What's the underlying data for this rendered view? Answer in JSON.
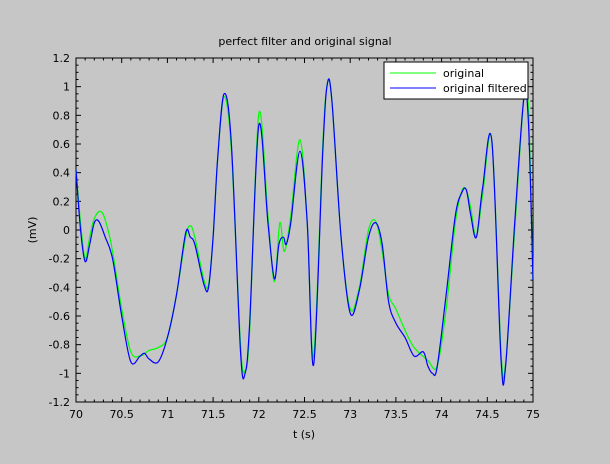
{
  "chart_data": {
    "type": "line",
    "title": "perfect filter and original signal",
    "xlabel": "t (s)",
    "ylabel": "(mV)",
    "xlim": [
      70,
      75
    ],
    "ylim": [
      -1.2,
      1.2
    ],
    "x_ticks": [
      70,
      70.5,
      71,
      71.5,
      72,
      72.5,
      73,
      73.5,
      74,
      74.5,
      75
    ],
    "x_tick_labels": [
      "70",
      "70.5",
      "71",
      "71.5",
      "72",
      "72.5",
      "73",
      "73.5",
      "74",
      "74.5",
      "75"
    ],
    "y_ticks": [
      -1.2,
      -1,
      -0.8,
      -0.6,
      -0.4,
      -0.2,
      0,
      0.2,
      0.4,
      0.6,
      0.8,
      1,
      1.2
    ],
    "y_tick_labels": [
      "-1.2",
      "-1",
      "-0.8",
      "-0.6",
      "-0.4",
      "-0.2",
      "0",
      "0.2",
      "0.4",
      "0.6",
      "0.8",
      "1",
      "1.2"
    ],
    "grid": false,
    "legend_position": "top-right",
    "series": [
      {
        "name": "original",
        "color": "#00ff00",
        "x": [
          70.0,
          70.05,
          70.1,
          70.15,
          70.2,
          70.27,
          70.33,
          70.4,
          70.5,
          70.6,
          70.7,
          70.8,
          70.9,
          71.0,
          71.1,
          71.2,
          71.25,
          71.3,
          71.4,
          71.45,
          71.5,
          71.55,
          71.62,
          71.7,
          71.8,
          71.85,
          71.9,
          72.0,
          72.1,
          72.17,
          72.23,
          72.28,
          72.35,
          72.45,
          72.53,
          72.6,
          72.7,
          72.75,
          72.8,
          72.9,
          73.0,
          73.1,
          73.2,
          73.28,
          73.35,
          73.42,
          73.5,
          73.6,
          73.7,
          73.85,
          73.95,
          74.05,
          74.15,
          74.22,
          74.27,
          74.32,
          74.38,
          74.45,
          74.55,
          74.65,
          74.7,
          74.8,
          74.9,
          74.95,
          75.0
        ],
        "y": [
          0.42,
          0.05,
          -0.2,
          -0.05,
          0.08,
          0.13,
          0.05,
          -0.15,
          -0.55,
          -0.85,
          -0.88,
          -0.84,
          -0.82,
          -0.75,
          -0.45,
          -0.05,
          0.03,
          -0.05,
          -0.35,
          -0.38,
          -0.05,
          0.5,
          0.93,
          0.55,
          -0.8,
          -0.98,
          -0.7,
          0.81,
          0.1,
          -0.36,
          0.05,
          -0.15,
          0.1,
          0.63,
          0.05,
          -0.88,
          0.6,
          1.02,
          0.9,
          -0.05,
          -0.55,
          -0.4,
          0.0,
          0.06,
          -0.15,
          -0.45,
          -0.55,
          -0.7,
          -0.82,
          -0.91,
          -0.95,
          -0.55,
          0.05,
          0.27,
          0.28,
          0.15,
          -0.05,
          0.25,
          0.62,
          -0.85,
          -0.93,
          0.0,
          0.92,
          0.85,
          -0.35
        ]
      },
      {
        "name": "original filtered",
        "color": "#0000ff",
        "x": [
          70.0,
          70.05,
          70.1,
          70.15,
          70.2,
          70.25,
          70.32,
          70.4,
          70.5,
          70.6,
          70.7,
          70.75,
          70.8,
          70.9,
          71.0,
          71.1,
          71.2,
          71.25,
          71.3,
          71.4,
          71.45,
          71.5,
          71.55,
          71.62,
          71.7,
          71.8,
          71.85,
          71.9,
          72.0,
          72.1,
          72.17,
          72.22,
          72.27,
          72.3,
          72.35,
          72.45,
          72.53,
          72.6,
          72.7,
          72.75,
          72.8,
          72.9,
          73.0,
          73.1,
          73.2,
          73.28,
          73.35,
          73.42,
          73.5,
          73.6,
          73.7,
          73.8,
          73.85,
          73.9,
          73.95,
          74.05,
          74.15,
          74.22,
          74.27,
          74.32,
          74.38,
          74.45,
          74.55,
          74.65,
          74.7,
          74.8,
          74.9,
          74.95,
          75.0
        ],
        "y": [
          0.42,
          0.0,
          -0.22,
          -0.1,
          0.05,
          0.06,
          -0.05,
          -0.2,
          -0.6,
          -0.92,
          -0.88,
          -0.86,
          -0.9,
          -0.92,
          -0.75,
          -0.45,
          -0.02,
          -0.05,
          -0.1,
          -0.38,
          -0.4,
          -0.05,
          0.5,
          0.95,
          0.6,
          -0.85,
          -1.0,
          -0.65,
          0.73,
          0.05,
          -0.34,
          -0.1,
          -0.05,
          -0.1,
          0.05,
          0.55,
          0.05,
          -0.94,
          0.55,
          1.02,
          0.9,
          -0.05,
          -0.58,
          -0.42,
          -0.05,
          0.05,
          -0.1,
          -0.5,
          -0.65,
          -0.75,
          -0.88,
          -0.85,
          -0.95,
          -1.0,
          -0.96,
          -0.45,
          0.1,
          0.26,
          0.28,
          0.1,
          -0.05,
          0.3,
          0.62,
          -0.9,
          -0.95,
          0.05,
          0.92,
          0.75,
          -0.35
        ]
      }
    ]
  }
}
